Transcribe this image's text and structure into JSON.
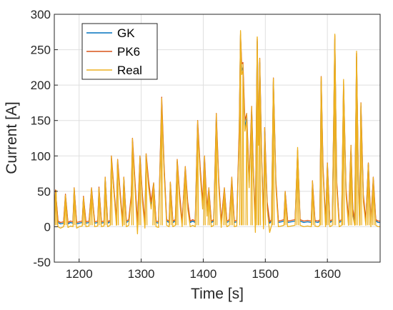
{
  "chart_data": {
    "type": "line",
    "xlabel": "Time [s]",
    "ylabel": "Current [A]",
    "xlim": [
      1160,
      1685
    ],
    "ylim": [
      -50,
      300
    ],
    "xticks": [
      1200,
      1300,
      1400,
      1500,
      1600
    ],
    "yticks": [
      -50,
      0,
      50,
      100,
      150,
      200,
      250,
      300
    ],
    "grid": true,
    "legend_position": "top-left",
    "colors": {
      "GK": "#0072bd",
      "PK6": "#d95319",
      "Real": "#edb120"
    },
    "peaks": [
      [
        1163,
        52
      ],
      [
        1178,
        45
      ],
      [
        1192,
        55
      ],
      [
        1207,
        42
      ],
      [
        1220,
        55
      ],
      [
        1232,
        55
      ],
      [
        1242,
        70
      ],
      [
        1252,
        100
      ],
      [
        1262,
        95
      ],
      [
        1272,
        70
      ],
      [
        1286,
        125
      ],
      [
        1298,
        100
      ],
      [
        1308,
        103
      ],
      [
        1320,
        62
      ],
      [
        1333,
        182
      ],
      [
        1347,
        63
      ],
      [
        1358,
        95
      ],
      [
        1371,
        85
      ],
      [
        1391,
        150
      ],
      [
        1402,
        100
      ],
      [
        1409,
        55
      ],
      [
        1421,
        160
      ],
      [
        1434,
        55
      ],
      [
        1446,
        70
      ],
      [
        1460,
        275
      ],
      [
        1464,
        230
      ],
      [
        1470,
        160
      ],
      [
        1478,
        170
      ],
      [
        1487,
        268
      ],
      [
        1491,
        238
      ],
      [
        1499,
        140
      ],
      [
        1513,
        210
      ],
      [
        1532,
        50
      ],
      [
        1552,
        108
      ],
      [
        1576,
        65
      ],
      [
        1590,
        212
      ],
      [
        1600,
        90
      ],
      [
        1612,
        270
      ],
      [
        1626,
        205
      ],
      [
        1638,
        115
      ],
      [
        1647,
        245
      ],
      [
        1654,
        175
      ],
      [
        1666,
        90
      ],
      [
        1674,
        70
      ]
    ],
    "series": [
      {
        "name": "GK",
        "x": [
          1160,
          1162,
          1166,
          1170,
          1175,
          1178,
          1182,
          1186,
          1190,
          1192,
          1196,
          1200,
          1205,
          1207,
          1211,
          1216,
          1220,
          1225,
          1230,
          1232,
          1236,
          1240,
          1242,
          1246,
          1250,
          1252,
          1256,
          1260,
          1262,
          1266,
          1270,
          1272,
          1276,
          1280,
          1284,
          1286,
          1290,
          1294,
          1298,
          1302,
          1306,
          1308,
          1312,
          1316,
          1320,
          1324,
          1328,
          1333,
          1337,
          1341,
          1345,
          1347,
          1351,
          1355,
          1358,
          1362,
          1366,
          1371,
          1375,
          1379,
          1383,
          1387,
          1391,
          1395,
          1399,
          1402,
          1406,
          1409,
          1413,
          1417,
          1421,
          1425,
          1429,
          1434,
          1438,
          1442,
          1446,
          1450,
          1454,
          1458,
          1460,
          1462,
          1464,
          1467,
          1470,
          1474,
          1478,
          1481,
          1484,
          1487,
          1489,
          1491,
          1494,
          1497,
          1499,
          1503,
          1507,
          1510,
          1513,
          1517,
          1521,
          1526,
          1530,
          1532,
          1536,
          1542,
          1548,
          1552,
          1556,
          1562,
          1568,
          1574,
          1576,
          1580,
          1585,
          1588,
          1590,
          1593,
          1597,
          1600,
          1604,
          1608,
          1612,
          1615,
          1619,
          1623,
          1626,
          1630,
          1634,
          1638,
          1641,
          1644,
          1647,
          1650,
          1652,
          1654,
          1658,
          1662,
          1666,
          1670,
          1674,
          1678,
          1682,
          1685
        ],
        "y": [
          8,
          50,
          6,
          4,
          5,
          44,
          4,
          6,
          5,
          53,
          4,
          5,
          6,
          41,
          5,
          6,
          53,
          5,
          6,
          54,
          5,
          6,
          68,
          5,
          7,
          96,
          50,
          8,
          92,
          45,
          7,
          68,
          6,
          8,
          40,
          120,
          60,
          4,
          97,
          40,
          6,
          100,
          60,
          30,
          60,
          6,
          5,
          175,
          80,
          8,
          6,
          60,
          6,
          8,
          92,
          40,
          6,
          82,
          30,
          6,
          8,
          6,
          145,
          80,
          30,
          95,
          20,
          52,
          6,
          8,
          155,
          60,
          6,
          52,
          6,
          8,
          65,
          6,
          7,
          130,
          270,
          220,
          225,
          140,
          155,
          60,
          165,
          70,
          8,
          262,
          120,
          232,
          100,
          5,
          135,
          30,
          5,
          8,
          205,
          60,
          6,
          7,
          8,
          48,
          6,
          7,
          8,
          105,
          8,
          6,
          7,
          6,
          62,
          7,
          6,
          8,
          205,
          80,
          6,
          88,
          6,
          8,
          265,
          60,
          6,
          8,
          198,
          50,
          8,
          110,
          20,
          8,
          240,
          60,
          8,
          170,
          40,
          8,
          88,
          6,
          66,
          8,
          6,
          6
        ]
      },
      {
        "name": "PK6",
        "x": [
          1160,
          1162,
          1166,
          1170,
          1175,
          1178,
          1182,
          1186,
          1190,
          1192,
          1196,
          1200,
          1205,
          1207,
          1211,
          1216,
          1220,
          1225,
          1230,
          1232,
          1236,
          1240,
          1242,
          1246,
          1250,
          1252,
          1256,
          1260,
          1262,
          1266,
          1270,
          1272,
          1276,
          1280,
          1284,
          1286,
          1290,
          1294,
          1298,
          1302,
          1306,
          1308,
          1312,
          1316,
          1320,
          1324,
          1328,
          1333,
          1337,
          1341,
          1345,
          1347,
          1351,
          1355,
          1358,
          1362,
          1366,
          1371,
          1375,
          1379,
          1383,
          1387,
          1391,
          1395,
          1399,
          1402,
          1406,
          1409,
          1413,
          1417,
          1421,
          1425,
          1429,
          1434,
          1438,
          1442,
          1446,
          1450,
          1454,
          1458,
          1460,
          1462,
          1464,
          1467,
          1470,
          1474,
          1478,
          1481,
          1484,
          1487,
          1489,
          1491,
          1494,
          1497,
          1499,
          1503,
          1507,
          1510,
          1513,
          1517,
          1521,
          1526,
          1530,
          1532,
          1536,
          1542,
          1548,
          1552,
          1556,
          1562,
          1568,
          1574,
          1576,
          1580,
          1585,
          1588,
          1590,
          1593,
          1597,
          1600,
          1604,
          1608,
          1612,
          1615,
          1619,
          1623,
          1626,
          1630,
          1634,
          1638,
          1641,
          1644,
          1647,
          1650,
          1652,
          1654,
          1658,
          1662,
          1666,
          1670,
          1674,
          1678,
          1682,
          1685
        ],
        "y": [
          10,
          52,
          8,
          6,
          7,
          46,
          6,
          8,
          7,
          55,
          6,
          7,
          8,
          43,
          7,
          8,
          55,
          7,
          8,
          56,
          7,
          8,
          70,
          7,
          9,
          100,
          55,
          10,
          95,
          50,
          9,
          70,
          8,
          10,
          45,
          125,
          65,
          6,
          100,
          45,
          8,
          103,
          65,
          35,
          62,
          8,
          7,
          183,
          85,
          10,
          8,
          63,
          8,
          10,
          95,
          45,
          8,
          85,
          35,
          8,
          10,
          8,
          150,
          85,
          35,
          100,
          25,
          55,
          8,
          10,
          160,
          65,
          8,
          55,
          8,
          10,
          70,
          8,
          9,
          140,
          272,
          230,
          232,
          150,
          160,
          65,
          170,
          75,
          10,
          265,
          125,
          238,
          105,
          7,
          140,
          35,
          7,
          10,
          210,
          65,
          8,
          9,
          10,
          50,
          8,
          9,
          10,
          108,
          10,
          8,
          9,
          8,
          65,
          9,
          8,
          10,
          212,
          85,
          8,
          90,
          8,
          10,
          270,
          65,
          8,
          10,
          205,
          55,
          10,
          115,
          25,
          10,
          245,
          65,
          10,
          175,
          45,
          10,
          90,
          8,
          70,
          10,
          8,
          8
        ]
      },
      {
        "name": "Real",
        "x": [
          1160,
          1162,
          1166,
          1170,
          1175,
          1178,
          1182,
          1186,
          1190,
          1192,
          1196,
          1200,
          1205,
          1207,
          1211,
          1216,
          1220,
          1225,
          1230,
          1232,
          1236,
          1240,
          1242,
          1246,
          1250,
          1252,
          1256,
          1260,
          1262,
          1266,
          1270,
          1272,
          1276,
          1280,
          1284,
          1286,
          1290,
          1294,
          1298,
          1302,
          1306,
          1308,
          1312,
          1316,
          1320,
          1324,
          1328,
          1333,
          1337,
          1341,
          1345,
          1347,
          1351,
          1355,
          1358,
          1362,
          1366,
          1371,
          1375,
          1379,
          1383,
          1387,
          1391,
          1395,
          1399,
          1402,
          1406,
          1409,
          1413,
          1417,
          1421,
          1425,
          1429,
          1434,
          1438,
          1442,
          1446,
          1450,
          1454,
          1458,
          1460,
          1462,
          1464,
          1467,
          1470,
          1474,
          1478,
          1481,
          1484,
          1487,
          1489,
          1491,
          1494,
          1497,
          1499,
          1503,
          1507,
          1510,
          1513,
          1517,
          1521,
          1526,
          1530,
          1532,
          1536,
          1542,
          1548,
          1552,
          1556,
          1562,
          1568,
          1574,
          1576,
          1580,
          1585,
          1588,
          1590,
          1593,
          1597,
          1600,
          1604,
          1608,
          1612,
          1615,
          1619,
          1623,
          1626,
          1630,
          1634,
          1638,
          1641,
          1644,
          1647,
          1650,
          1652,
          1654,
          1658,
          1662,
          1666,
          1670,
          1674,
          1678,
          1682,
          1685
        ],
        "y": [
          2,
          48,
          0,
          -2,
          0,
          43,
          -1,
          1,
          0,
          52,
          -2,
          0,
          1,
          40,
          0,
          1,
          52,
          0,
          1,
          53,
          0,
          1,
          67,
          0,
          2,
          95,
          48,
          2,
          90,
          42,
          1,
          66,
          0,
          2,
          38,
          118,
          55,
          -10,
          95,
          35,
          -2,
          98,
          55,
          25,
          58,
          0,
          -1,
          172,
          75,
          2,
          0,
          58,
          0,
          2,
          90,
          35,
          0,
          80,
          25,
          0,
          2,
          0,
          142,
          75,
          25,
          92,
          15,
          50,
          0,
          2,
          152,
          55,
          -1,
          50,
          0,
          2,
          63,
          0,
          1,
          125,
          277,
          215,
          220,
          135,
          150,
          55,
          160,
          65,
          -8,
          268,
          115,
          230,
          95,
          -3,
          130,
          25,
          -8,
          2,
          208,
          55,
          0,
          1,
          2,
          46,
          0,
          1,
          2,
          112,
          2,
          0,
          1,
          0,
          60,
          1,
          0,
          2,
          210,
          75,
          0,
          85,
          0,
          2,
          272,
          55,
          0,
          2,
          208,
          45,
          2,
          108,
          15,
          2,
          248,
          55,
          2,
          168,
          35,
          2,
          85,
          0,
          64,
          2,
          0,
          0
        ]
      }
    ]
  }
}
